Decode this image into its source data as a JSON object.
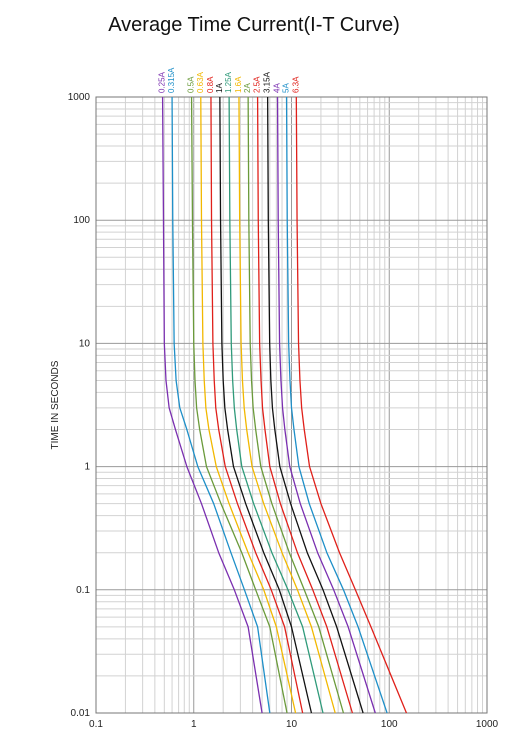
{
  "chart_data": {
    "type": "line",
    "title": "Average Time Current(I-T Curve)",
    "xlabel": "",
    "ylabel": "TIME  IN SECONDS",
    "xscale": "log",
    "yscale": "log",
    "xlim": [
      0.1,
      1000
    ],
    "ylim": [
      0.01,
      1000
    ],
    "x_ticks": [
      "0.1",
      "1",
      "10",
      "100",
      "1000"
    ],
    "y_ticks": [
      "1000",
      "100",
      "10",
      "1",
      "0.1",
      "0.01"
    ],
    "grid": true,
    "legend": "series labels rotated above plot top",
    "series": [
      {
        "name": "0.25A",
        "color": "#7a2fb0",
        "points": [
          [
            0.48,
            1000
          ],
          [
            0.49,
            100
          ],
          [
            0.5,
            10
          ],
          [
            0.52,
            5
          ],
          [
            0.56,
            3
          ],
          [
            0.65,
            2
          ],
          [
            0.85,
            1
          ],
          [
            1.2,
            0.5
          ],
          [
            1.8,
            0.2
          ],
          [
            2.6,
            0.1
          ],
          [
            3.6,
            0.05
          ],
          [
            5,
            0.01
          ]
        ]
      },
      {
        "name": "0.315A",
        "color": "#1e8fc8",
        "points": [
          [
            0.6,
            1000
          ],
          [
            0.61,
            100
          ],
          [
            0.63,
            10
          ],
          [
            0.66,
            5
          ],
          [
            0.72,
            3
          ],
          [
            0.85,
            2
          ],
          [
            1.1,
            1
          ],
          [
            1.6,
            0.5
          ],
          [
            2.4,
            0.2
          ],
          [
            3.3,
            0.1
          ],
          [
            4.5,
            0.05
          ],
          [
            6,
            0.01
          ]
        ]
      },
      {
        "name": "0.5A",
        "color": "#6a9a3a",
        "points": [
          [
            0.95,
            1000
          ],
          [
            0.97,
            100
          ],
          [
            1,
            10
          ],
          [
            1.03,
            5
          ],
          [
            1.07,
            3
          ],
          [
            1.15,
            2
          ],
          [
            1.35,
            1
          ],
          [
            1.9,
            0.5
          ],
          [
            3.1,
            0.2
          ],
          [
            4.3,
            0.1
          ],
          [
            6,
            0.05
          ],
          [
            9,
            0.01
          ]
        ]
      },
      {
        "name": "0.63A",
        "color": "#f2b800",
        "points": [
          [
            1.18,
            1000
          ],
          [
            1.2,
            100
          ],
          [
            1.24,
            10
          ],
          [
            1.28,
            5
          ],
          [
            1.33,
            3
          ],
          [
            1.43,
            2
          ],
          [
            1.7,
            1
          ],
          [
            2.3,
            0.5
          ],
          [
            3.6,
            0.2
          ],
          [
            5.2,
            0.1
          ],
          [
            7,
            0.05
          ],
          [
            11,
            0.01
          ]
        ]
      },
      {
        "name": "0.8A",
        "color": "#e0201a",
        "points": [
          [
            1.5,
            1000
          ],
          [
            1.52,
            100
          ],
          [
            1.57,
            10
          ],
          [
            1.62,
            5
          ],
          [
            1.68,
            3
          ],
          [
            1.8,
            2
          ],
          [
            2.1,
            1
          ],
          [
            2.8,
            0.5
          ],
          [
            4.3,
            0.2
          ],
          [
            6.2,
            0.1
          ],
          [
            8.5,
            0.05
          ],
          [
            13,
            0.01
          ]
        ]
      },
      {
        "name": "1A",
        "color": "#111111",
        "points": [
          [
            1.85,
            1000
          ],
          [
            1.88,
            100
          ],
          [
            1.94,
            10
          ],
          [
            2,
            5
          ],
          [
            2.08,
            3
          ],
          [
            2.22,
            2
          ],
          [
            2.55,
            1
          ],
          [
            3.4,
            0.5
          ],
          [
            5.2,
            0.2
          ],
          [
            7.5,
            0.1
          ],
          [
            10,
            0.05
          ],
          [
            16,
            0.01
          ]
        ]
      },
      {
        "name": "1.25A",
        "color": "#2f9a7a",
        "points": [
          [
            2.3,
            1000
          ],
          [
            2.34,
            100
          ],
          [
            2.42,
            10
          ],
          [
            2.5,
            5
          ],
          [
            2.6,
            3
          ],
          [
            2.75,
            2
          ],
          [
            3.1,
            1
          ],
          [
            4.1,
            0.5
          ],
          [
            6.3,
            0.2
          ],
          [
            9.2,
            0.1
          ],
          [
            13,
            0.05
          ],
          [
            21,
            0.01
          ]
        ]
      },
      {
        "name": "1.6A",
        "color": "#f2b800",
        "points": [
          [
            2.9,
            1000
          ],
          [
            2.95,
            100
          ],
          [
            3.05,
            10
          ],
          [
            3.15,
            5
          ],
          [
            3.28,
            3
          ],
          [
            3.48,
            2
          ],
          [
            3.95,
            1
          ],
          [
            5.2,
            0.5
          ],
          [
            8,
            0.2
          ],
          [
            11.5,
            0.1
          ],
          [
            16,
            0.05
          ],
          [
            28,
            0.01
          ]
        ]
      },
      {
        "name": "2A",
        "color": "#6a9a3a",
        "points": [
          [
            3.6,
            1000
          ],
          [
            3.66,
            100
          ],
          [
            3.78,
            10
          ],
          [
            3.9,
            5
          ],
          [
            4.05,
            3
          ],
          [
            4.3,
            2
          ],
          [
            4.85,
            1
          ],
          [
            6.3,
            0.5
          ],
          [
            9.5,
            0.2
          ],
          [
            13.5,
            0.1
          ],
          [
            19,
            0.05
          ],
          [
            34,
            0.01
          ]
        ]
      },
      {
        "name": "2.5A",
        "color": "#e0201a",
        "points": [
          [
            4.5,
            1000
          ],
          [
            4.57,
            100
          ],
          [
            4.72,
            10
          ],
          [
            4.88,
            5
          ],
          [
            5.05,
            3
          ],
          [
            5.35,
            2
          ],
          [
            6,
            1
          ],
          [
            7.7,
            0.5
          ],
          [
            11.5,
            0.2
          ],
          [
            16.5,
            0.1
          ],
          [
            23,
            0.05
          ],
          [
            42,
            0.01
          ]
        ]
      },
      {
        "name": "3.15A",
        "color": "#111111",
        "points": [
          [
            5.7,
            1000
          ],
          [
            5.79,
            100
          ],
          [
            5.98,
            10
          ],
          [
            6.15,
            5
          ],
          [
            6.38,
            3
          ],
          [
            6.75,
            2
          ],
          [
            7.6,
            1
          ],
          [
            9.8,
            0.5
          ],
          [
            14.5,
            0.2
          ],
          [
            21,
            0.1
          ],
          [
            29,
            0.05
          ],
          [
            54,
            0.01
          ]
        ]
      },
      {
        "name": "4A",
        "color": "#7a2fb0",
        "points": [
          [
            7.2,
            1000
          ],
          [
            7.31,
            100
          ],
          [
            7.55,
            10
          ],
          [
            7.8,
            5
          ],
          [
            8.1,
            3
          ],
          [
            8.55,
            2
          ],
          [
            9.6,
            1
          ],
          [
            12.3,
            0.5
          ],
          [
            18.5,
            0.2
          ],
          [
            27,
            0.1
          ],
          [
            38,
            0.05
          ],
          [
            72,
            0.01
          ]
        ]
      },
      {
        "name": "5A",
        "color": "#1e8fc8",
        "points": [
          [
            8.9,
            1000
          ],
          [
            9.04,
            100
          ],
          [
            9.35,
            10
          ],
          [
            9.65,
            5
          ],
          [
            10,
            3
          ],
          [
            10.6,
            2
          ],
          [
            11.9,
            1
          ],
          [
            15.2,
            0.5
          ],
          [
            23,
            0.2
          ],
          [
            34,
            0.1
          ],
          [
            48,
            0.05
          ],
          [
            95,
            0.01
          ]
        ]
      },
      {
        "name": "6.3A",
        "color": "#e0201a",
        "points": [
          [
            11.2,
            1000
          ],
          [
            11.4,
            100
          ],
          [
            11.8,
            10
          ],
          [
            12.2,
            5
          ],
          [
            12.7,
            3
          ],
          [
            13.5,
            2
          ],
          [
            15.3,
            1
          ],
          [
            20,
            0.5
          ],
          [
            31,
            0.2
          ],
          [
            45,
            0.1
          ],
          [
            65,
            0.05
          ],
          [
            150,
            0.01
          ]
        ]
      }
    ]
  }
}
